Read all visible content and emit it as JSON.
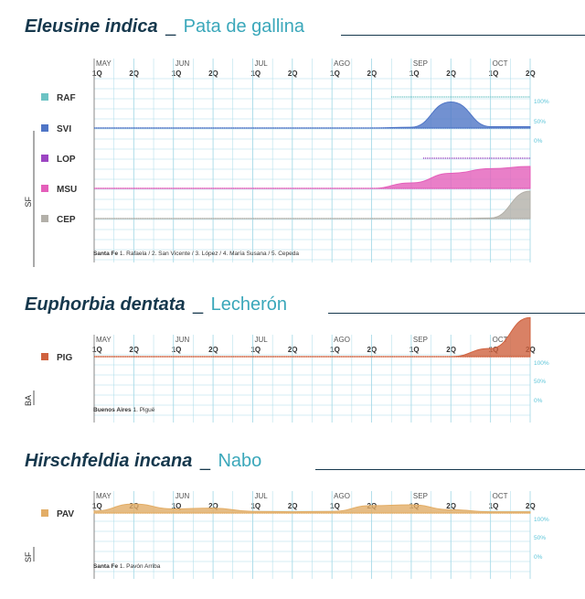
{
  "months": [
    "MAY",
    "JUN",
    "JUL",
    "AGO",
    "SEP",
    "OCT"
  ],
  "halves": [
    "1Q",
    "2Q",
    "1Q",
    "2Q",
    "1Q",
    "2Q",
    "1Q",
    "2Q",
    "1Q",
    "2Q",
    "1Q",
    "2Q"
  ],
  "pct_ticks": [
    "100%",
    "50%",
    "0%"
  ],
  "colors": {
    "title_dark": "#16384d",
    "title_accent": "#3aa7ba",
    "grid": "#a9dbe8",
    "pct": "#5bc4d8"
  },
  "species": [
    {
      "scientific": "Eleusine indica",
      "separator": "_",
      "common": "Pata de gallina",
      "province": "SF",
      "footnote_region": "Santa Fe",
      "footnote_detail": "1. Rafaela / 2. San Vicente / 3. López / 4. María Susana / 5. Cepeda"
    },
    {
      "scientific": "Euphorbia dentata",
      "separator": "_",
      "common": "Lecherón",
      "province": "BA",
      "footnote_region": "Buenos Aires",
      "footnote_detail": "1. Piguë"
    },
    {
      "scientific": "Hirschfeldia incana",
      "separator": "_",
      "common": "Nabo",
      "province": "SF",
      "footnote_region": "Santa Fe",
      "footnote_detail": "1. Pavón Arriba"
    }
  ],
  "chart_data": [
    {
      "type": "area",
      "title": "Eleusine indica _ Pata de gallina",
      "x": [
        "MAY 1Q",
        "MAY 2Q",
        "JUN 1Q",
        "JUN 2Q",
        "JUL 1Q",
        "JUL 2Q",
        "AGO 1Q",
        "AGO 2Q",
        "SEP 1Q",
        "SEP 2Q",
        "OCT 1Q",
        "OCT 2Q"
      ],
      "ylim": [
        0,
        100
      ],
      "series": [
        {
          "name": "RAF",
          "color": "#6cc3c4",
          "start_index": 7.5,
          "values": [
            0,
            0,
            0,
            0,
            0,
            0,
            0,
            0,
            0,
            0,
            0,
            0
          ]
        },
        {
          "name": "SVI",
          "color": "#4f75c6",
          "start_index": 0,
          "values": [
            0,
            0,
            0,
            0,
            0,
            0,
            0,
            0,
            3,
            95,
            5,
            5
          ]
        },
        {
          "name": "LOP",
          "color": "#9c45c2",
          "start_index": 8.3,
          "values": [
            0,
            0,
            0,
            0,
            0,
            0,
            0,
            0,
            0,
            0,
            0,
            0
          ]
        },
        {
          "name": "MSU",
          "color": "#e45fba",
          "start_index": 0,
          "values": [
            0,
            0,
            0,
            0,
            0,
            0,
            0,
            0,
            20,
            55,
            72,
            80
          ]
        },
        {
          "name": "CEP",
          "color": "#b3b0a9",
          "start_index": 0,
          "values": [
            0,
            0,
            0,
            0,
            0,
            0,
            0,
            0,
            0,
            0,
            2,
            100
          ]
        }
      ]
    },
    {
      "type": "area",
      "title": "Euphorbia dentata _ Lecherón",
      "x": [
        "MAY 1Q",
        "MAY 2Q",
        "JUN 1Q",
        "JUN 2Q",
        "JUL 1Q",
        "JUL 2Q",
        "AGO 1Q",
        "AGO 2Q",
        "SEP 1Q",
        "SEP 2Q",
        "OCT 1Q",
        "OCT 2Q"
      ],
      "ylim": [
        0,
        100
      ],
      "series": [
        {
          "name": "PIG",
          "color": "#d0623f",
          "start_index": 0,
          "values": [
            0,
            0,
            0,
            0,
            0,
            0,
            0,
            0,
            0,
            0,
            20,
            95
          ]
        }
      ]
    },
    {
      "type": "area",
      "title": "Hirschfeldia incana _ Nabo",
      "x": [
        "MAY 1Q",
        "MAY 2Q",
        "JUN 1Q",
        "JUN 2Q",
        "JUL 1Q",
        "JUL 2Q",
        "AGO 1Q",
        "AGO 2Q",
        "SEP 1Q",
        "SEP 2Q",
        "OCT 1Q",
        "OCT 2Q"
      ],
      "ylim": [
        0,
        100
      ],
      "series": [
        {
          "name": "PAV",
          "color": "#e2ad66",
          "start_index": 0,
          "values": [
            5,
            22,
            10,
            12,
            4,
            3,
            4,
            18,
            20,
            8,
            3,
            3
          ]
        }
      ]
    }
  ]
}
